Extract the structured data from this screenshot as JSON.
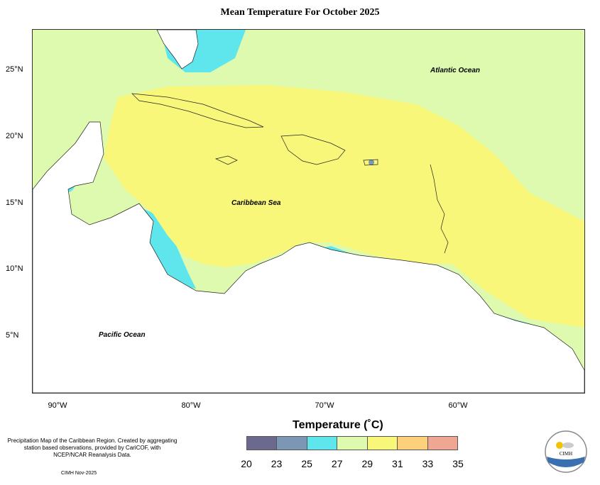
{
  "title": "Mean Temperature For October 2025",
  "y_ticks": [
    "25°N",
    "20°N",
    "15°N",
    "10°N",
    "5°N"
  ],
  "x_ticks": [
    "90°W",
    "80°W",
    "70°W",
    "60°W"
  ],
  "ocean_labels": {
    "atlantic": "Atlantic Ocean",
    "caribbean": "Caribbean Sea",
    "pacific": "Pacific Ocean"
  },
  "credits": "Precipitation Map of the Caribbean Region. Created by aggregating station based observations, provided by CariCOF, with NCEP/NCAR Reanalysis Data.",
  "date_credit": "CIMH Nov-2025",
  "legend": {
    "title": "Temperature (˚C)",
    "labels": [
      "20",
      "23",
      "25",
      "27",
      "29",
      "31",
      "33",
      "35"
    ],
    "colors": [
      "#6b6a8e",
      "#7b97b3",
      "#5ee6ec",
      "#ddfaae",
      "#f8f77a",
      "#fdd07b",
      "#efa793"
    ]
  },
  "logo": {
    "name": "CIMH"
  }
}
